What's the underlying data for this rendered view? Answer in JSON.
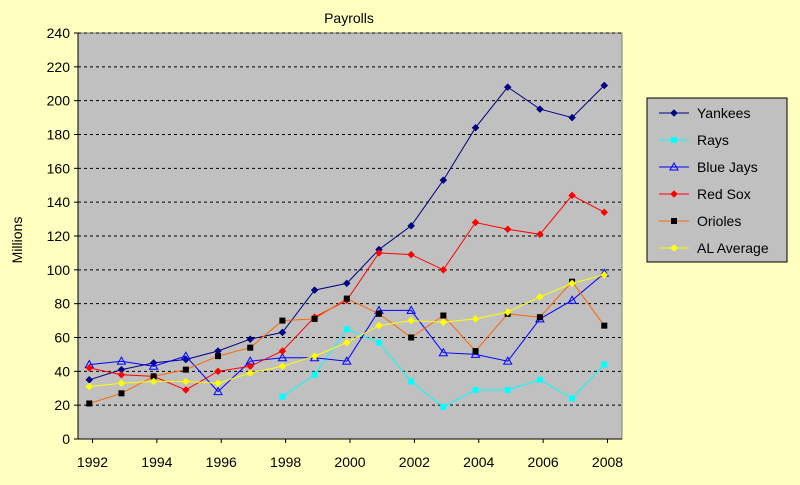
{
  "chart_data": {
    "type": "line",
    "title": "Payrolls",
    "xlabel": "",
    "ylabel": "Millions",
    "xlim": [
      1991.55,
      2008.45
    ],
    "ylim": [
      0,
      240
    ],
    "yticks": [
      0,
      20,
      40,
      60,
      80,
      100,
      120,
      140,
      160,
      180,
      200,
      220,
      240
    ],
    "xticks": [
      1992,
      1994,
      1996,
      1998,
      2000,
      2002,
      2004,
      2006,
      2008
    ],
    "grid": "horizontal dashed",
    "legend_position": "right",
    "plot_background": "#c0c0c0",
    "page_background": "#ffffc0",
    "series": [
      {
        "name": "Yankees",
        "color": "#000080",
        "marker": "diamond",
        "points": [
          [
            1991.9,
            35
          ],
          [
            1992.9,
            41
          ],
          [
            1993.9,
            45
          ],
          [
            1994.9,
            47
          ],
          [
            1995.9,
            52
          ],
          [
            1996.9,
            59
          ],
          [
            1997.9,
            63
          ],
          [
            1998.9,
            88
          ],
          [
            1999.9,
            92
          ],
          [
            2000.9,
            112
          ],
          [
            2001.9,
            126
          ],
          [
            2002.9,
            153
          ],
          [
            2003.9,
            184
          ],
          [
            2004.9,
            208
          ],
          [
            2005.9,
            195
          ],
          [
            2006.9,
            190
          ],
          [
            2007.9,
            209
          ]
        ]
      },
      {
        "name": "Rays",
        "color": "#00ffff",
        "marker": "square",
        "points": [
          [
            1997.9,
            25
          ],
          [
            1998.9,
            38
          ],
          [
            1999.9,
            65
          ],
          [
            2000.9,
            57
          ],
          [
            2001.9,
            34
          ],
          [
            2002.9,
            19
          ],
          [
            2003.9,
            29
          ],
          [
            2004.9,
            29
          ],
          [
            2005.9,
            35
          ],
          [
            2006.9,
            24
          ],
          [
            2007.9,
            44
          ]
        ]
      },
      {
        "name": "Blue Jays",
        "color": "#0000ff",
        "marker": "triangle",
        "points": [
          [
            1991.9,
            44
          ],
          [
            1992.9,
            46
          ],
          [
            1993.9,
            43
          ],
          [
            1994.9,
            49
          ],
          [
            1995.9,
            28
          ],
          [
            1996.9,
            46
          ],
          [
            1997.9,
            48
          ],
          [
            1998.9,
            48
          ],
          [
            1999.9,
            46
          ],
          [
            2000.9,
            76
          ],
          [
            2001.9,
            76
          ],
          [
            2002.9,
            51
          ],
          [
            2003.9,
            50
          ],
          [
            2004.9,
            46
          ],
          [
            2005.9,
            71
          ],
          [
            2006.9,
            82
          ],
          [
            2007.9,
            98
          ]
        ]
      },
      {
        "name": "Red Sox",
        "color": "#ff0000",
        "marker": "diamond",
        "points": [
          [
            1991.9,
            42
          ],
          [
            1992.9,
            38
          ],
          [
            1993.9,
            37
          ],
          [
            1994.9,
            29
          ],
          [
            1995.9,
            40
          ],
          [
            1996.9,
            43
          ],
          [
            1997.9,
            52
          ],
          [
            1998.9,
            72
          ],
          [
            1999.9,
            82
          ],
          [
            2000.9,
            110
          ],
          [
            2001.9,
            109
          ],
          [
            2002.9,
            100
          ],
          [
            2003.9,
            128
          ],
          [
            2004.9,
            124
          ],
          [
            2005.9,
            121
          ],
          [
            2006.9,
            144
          ],
          [
            2007.9,
            134
          ]
        ]
      },
      {
        "name": "Orioles",
        "color": "#ff6600",
        "marker": "square",
        "marker_color": "#000000",
        "points": [
          [
            1991.9,
            21
          ],
          [
            1992.9,
            27
          ],
          [
            1993.9,
            37
          ],
          [
            1994.9,
            41
          ],
          [
            1995.9,
            49
          ],
          [
            1996.9,
            54
          ],
          [
            1997.9,
            70
          ],
          [
            1998.9,
            71
          ],
          [
            1999.9,
            83
          ],
          [
            2000.9,
            74
          ],
          [
            2001.9,
            60
          ],
          [
            2002.9,
            73
          ],
          [
            2003.9,
            52
          ],
          [
            2004.9,
            74
          ],
          [
            2005.9,
            72
          ],
          [
            2006.9,
            93
          ],
          [
            2007.9,
            67
          ]
        ]
      },
      {
        "name": "AL Average",
        "color": "#ffff00",
        "marker": "diamond",
        "points": [
          [
            1991.9,
            31
          ],
          [
            1992.9,
            33
          ],
          [
            1993.9,
            34
          ],
          [
            1994.9,
            34
          ],
          [
            1995.9,
            33
          ],
          [
            1996.9,
            39
          ],
          [
            1997.9,
            43
          ],
          [
            1998.9,
            49
          ],
          [
            1999.9,
            57
          ],
          [
            2000.9,
            67
          ],
          [
            2001.9,
            70
          ],
          [
            2002.9,
            69
          ],
          [
            2003.9,
            71
          ],
          [
            2004.9,
            75
          ],
          [
            2005.9,
            84
          ],
          [
            2006.9,
            92
          ],
          [
            2007.9,
            97
          ]
        ]
      }
    ]
  }
}
